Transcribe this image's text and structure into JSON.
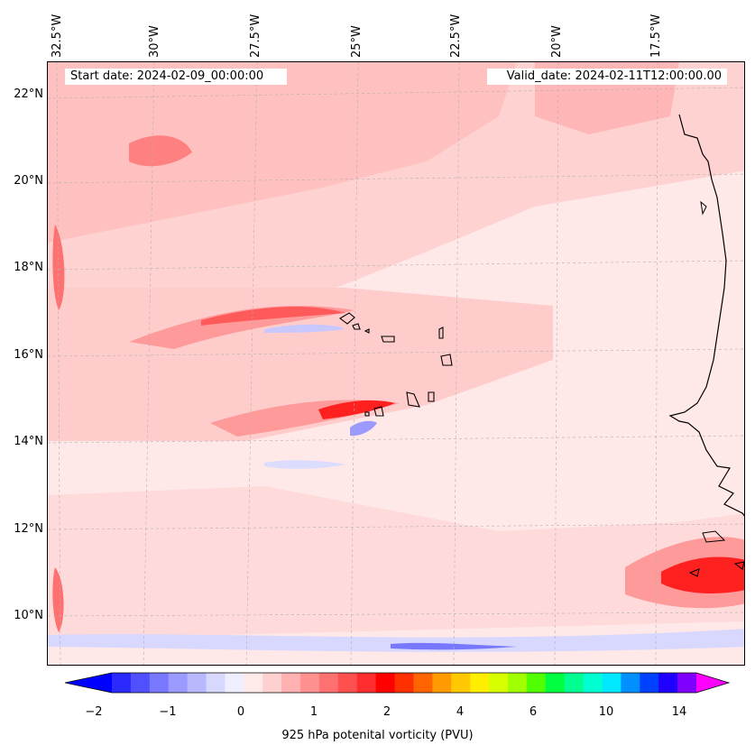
{
  "header": {
    "start_date": "Start date: 2024-02-09_00:00:00",
    "valid_date": "Valid_date: 2024-02-11T12:00:00.00"
  },
  "axes": {
    "longitude_labels": [
      "32.5°W",
      "30°W",
      "27.5°W",
      "25°W",
      "22.5°W",
      "20°W",
      "17.5°W"
    ],
    "latitude_labels": [
      "22°N",
      "20°N",
      "18°N",
      "16°N",
      "14°N",
      "12°N",
      "10°N"
    ]
  },
  "colorbar": {
    "label": "925 hPa potenital vorticity (PVU)",
    "tick_labels": [
      "−2",
      "−1",
      "0",
      "1",
      "2",
      "4",
      "6",
      "10",
      "14"
    ],
    "colors": [
      "#0000ff",
      "#2a2aff",
      "#5050ff",
      "#7878ff",
      "#9a9aff",
      "#b8b8ff",
      "#d8d8ff",
      "#eeeeff",
      "#ffeaea",
      "#ffd0d0",
      "#ffb0b0",
      "#ff9090",
      "#ff7070",
      "#ff5050",
      "#ff2e2e",
      "#ff0000",
      "#ff3000",
      "#ff6400",
      "#ff9a00",
      "#ffc800",
      "#ffee00",
      "#d8ff00",
      "#a0ff00",
      "#50ff00",
      "#00ff40",
      "#00ff90",
      "#00ffd0",
      "#00e8ff",
      "#0090ff",
      "#0040ff",
      "#2000ff",
      "#8000ff",
      "#ff00ff"
    ]
  },
  "map": {
    "region": "Cape Verde / West Africa coast"
  }
}
